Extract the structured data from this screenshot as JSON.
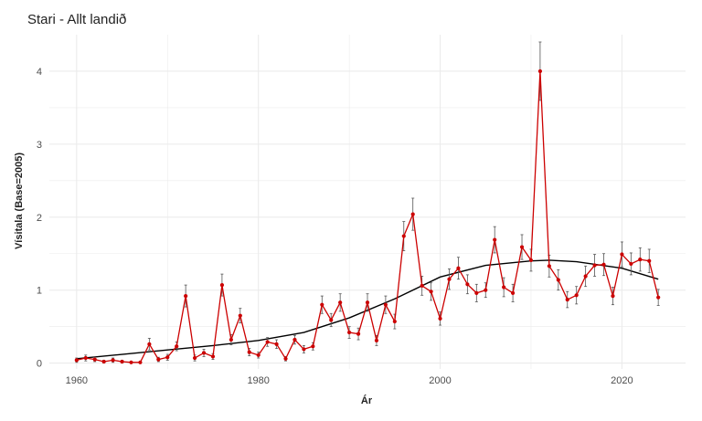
{
  "chart_data": {
    "type": "line",
    "title": "Stari - Allt landið",
    "xlabel": "Ár",
    "ylabel": "Vísitala (Base=2005)",
    "xlim": [
      1957,
      2027
    ],
    "ylim": [
      -0.08,
      4.5
    ],
    "x_ticks": [
      1960,
      1980,
      2000,
      2020
    ],
    "y_ticks": [
      0,
      1,
      2,
      3,
      4
    ],
    "grid": true,
    "legend": "none",
    "colors": {
      "series": "#cc0000",
      "trend": "#000000",
      "errorbar": "#555555",
      "grid": "#ebebeb"
    },
    "series": [
      {
        "x": [
          1960,
          1961,
          1962,
          1963,
          1964,
          1965,
          1966,
          1967,
          1968,
          1969,
          1970,
          1971,
          1972,
          1973,
          1974,
          1975,
          1976,
          1977,
          1978,
          1979,
          1980,
          1981,
          1982,
          1983,
          1984,
          1985,
          1986,
          1987,
          1988,
          1989,
          1990,
          1991,
          1992,
          1993,
          1994,
          1995,
          1996,
          1997,
          1998,
          1999,
          2000,
          2001,
          2002,
          2003,
          2004,
          2005,
          2006,
          2007,
          2008,
          2009,
          2010,
          2011,
          2012,
          2013,
          2014,
          2015,
          2016,
          2017,
          2018,
          2019,
          2020,
          2021,
          2022,
          2023,
          2024
        ],
        "values": [
          0.04,
          0.07,
          0.05,
          0.02,
          0.04,
          0.02,
          0.01,
          0.01,
          0.26,
          0.05,
          0.08,
          0.23,
          0.92,
          0.07,
          0.14,
          0.09,
          1.07,
          0.32,
          0.65,
          0.15,
          0.11,
          0.29,
          0.26,
          0.06,
          0.32,
          0.19,
          0.23,
          0.8,
          0.59,
          0.83,
          0.42,
          0.4,
          0.83,
          0.31,
          0.8,
          0.57,
          1.74,
          2.04,
          1.06,
          0.98,
          0.61,
          1.15,
          1.3,
          1.08,
          0.96,
          1.0,
          1.69,
          1.04,
          0.96,
          1.59,
          1.41,
          4.0,
          1.33,
          1.14,
          0.87,
          0.93,
          1.19,
          1.34,
          1.35,
          0.92,
          1.49,
          1.36,
          1.42,
          1.4,
          0.9
        ],
        "error": [
          0.03,
          0.04,
          0.03,
          0.02,
          0.03,
          0.02,
          0.01,
          0.01,
          0.08,
          0.03,
          0.04,
          0.06,
          0.15,
          0.04,
          0.05,
          0.04,
          0.15,
          0.07,
          0.1,
          0.05,
          0.04,
          0.06,
          0.06,
          0.03,
          0.06,
          0.05,
          0.05,
          0.12,
          0.09,
          0.12,
          0.08,
          0.08,
          0.12,
          0.07,
          0.12,
          0.1,
          0.2,
          0.22,
          0.13,
          0.12,
          0.09,
          0.14,
          0.15,
          0.13,
          0.12,
          0.1,
          0.18,
          0.13,
          0.12,
          0.17,
          0.15,
          0.4,
          0.15,
          0.14,
          0.11,
          0.12,
          0.14,
          0.15,
          0.15,
          0.12,
          0.17,
          0.15,
          0.16,
          0.16,
          0.11
        ]
      }
    ],
    "trend": {
      "x": [
        1960,
        1965,
        1970,
        1975,
        1980,
        1985,
        1990,
        1995,
        2000,
        2005,
        2010,
        2012,
        2015,
        2020,
        2024
      ],
      "values": [
        0.06,
        0.12,
        0.18,
        0.24,
        0.31,
        0.42,
        0.62,
        0.88,
        1.18,
        1.34,
        1.4,
        1.41,
        1.39,
        1.3,
        1.15
      ]
    }
  }
}
